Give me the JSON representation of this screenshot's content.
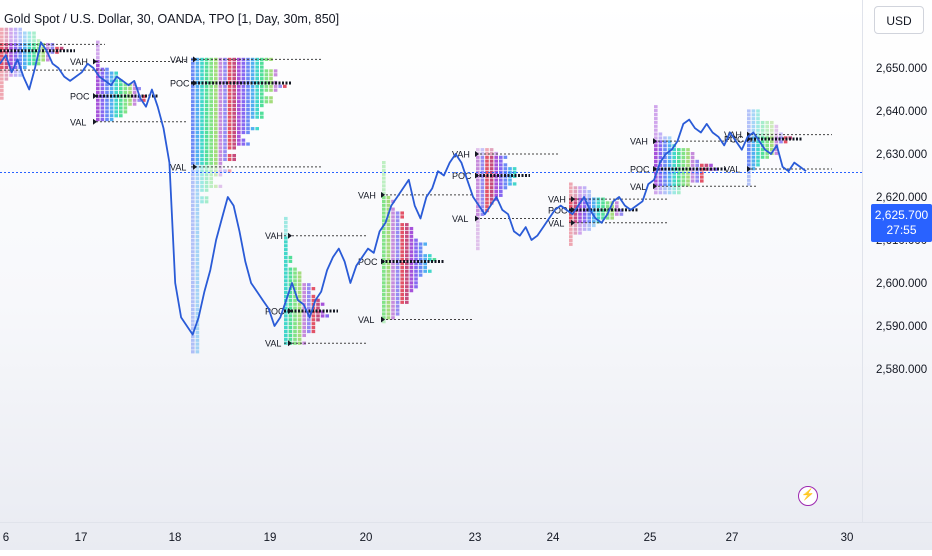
{
  "chart_title": "Gold Spot / U.S. Dollar, 30, OANDA, TPO [1, Day, 30m, 850]",
  "currency": "USD",
  "last_price": "2,625.700",
  "countdown": "27:55",
  "price_axis_labels": [
    "2,650.000",
    "2,640.000",
    "2,630.000",
    "2,620.000",
    "2,610.000",
    "2,600.000",
    "2,590.000",
    "2,580.000"
  ],
  "time_axis_labels": [
    "6",
    "17",
    "18",
    "19",
    "20",
    "23",
    "24",
    "25",
    "27",
    "30"
  ],
  "colors": {
    "line": "#2a5bd7",
    "accent": "#2962ff",
    "replay": "#9c27b0"
  },
  "chart_data": {
    "type": "line",
    "symbol": "XAUUSD",
    "y_ticks": [
      2650,
      2640,
      2630,
      2620,
      2610,
      2600,
      2590,
      2580
    ],
    "ylim": [
      2576,
      2659
    ],
    "last_price": 2625.7,
    "x_tick_labels": [
      "6",
      "17",
      "18",
      "19",
      "20",
      "23",
      "24",
      "25",
      "27",
      "30"
    ],
    "series": [
      {
        "values": [
          2651,
          2653,
          2649,
          2652,
          2648,
          2645,
          2650,
          2656,
          2654,
          2651,
          2650,
          2648,
          2647,
          2648,
          2649,
          2651,
          2650,
          2648,
          2647,
          2646,
          2648,
          2647,
          2646,
          2647,
          2643,
          2641,
          2645,
          2641,
          2636,
          2628,
          2600,
          2592,
          2590,
          2588,
          2592,
          2598,
          2603,
          2610,
          2615,
          2620,
          2618,
          2612,
          2605,
          2600,
          2598,
          2596,
          2594,
          2590,
          2592,
          2596,
          2600,
          2596,
          2595,
          2592,
          2596,
          2598,
          2603,
          2606,
          2608,
          2605,
          2600,
          2604,
          2606,
          2608,
          2607,
          2612,
          2614,
          2618,
          2620,
          2622,
          2624,
          2618,
          2615,
          2620,
          2622,
          2626,
          2625,
          2628,
          2630,
          2628,
          2624,
          2620,
          2618,
          2616,
          2618,
          2620,
          2617,
          2616,
          2612,
          2611,
          2613,
          2610,
          2611,
          2613,
          2615,
          2617,
          2618,
          2617,
          2616,
          2618,
          2620,
          2617,
          2615,
          2614,
          2616,
          2619,
          2620,
          2618,
          2617,
          2618,
          2619,
          2623,
          2624,
          2628,
          2630,
          2631,
          2633,
          2637,
          2638,
          2636,
          2635,
          2637,
          2635,
          2634,
          2632,
          2635,
          2633,
          2631,
          2634,
          2635,
          2633,
          2631,
          2630,
          2632,
          2627,
          2626,
          2628,
          2627,
          2626
        ],
        "color": "#2a5bd7"
      }
    ],
    "tpo_profiles": [
      {
        "day": "prior",
        "top": 2659,
        "bottom": 2643,
        "vah": 2655.5,
        "poc": 2654,
        "val": 2649.5
      },
      {
        "day": "17",
        "top": 2656,
        "bottom": 2638,
        "vah": 2651.5,
        "poc": 2643.5,
        "val": 2637.5
      },
      {
        "day": "18",
        "top": 2652,
        "bottom": 2584,
        "vah": 2652,
        "poc": 2646.5,
        "val": 2627
      },
      {
        "day": "19",
        "top": 2615,
        "bottom": 2586,
        "vah": 2611,
        "poc": 2593.5,
        "val": 2586
      },
      {
        "day": "20",
        "top": 2628,
        "bottom": 2591,
        "vah": 2620.5,
        "poc": 2605,
        "val": 2591.5
      },
      {
        "day": "23",
        "top": 2631,
        "bottom": 2608,
        "vah": 2630,
        "poc": 2625,
        "val": 2615
      },
      {
        "day": "24",
        "top": 2623,
        "bottom": 2609,
        "vah": 2619.5,
        "poc": 2617,
        "val": 2614
      },
      {
        "day": "25",
        "top": 2641,
        "bottom": 2621,
        "vah": 2633,
        "poc": 2626.5,
        "val": 2622.5
      },
      {
        "day": "27",
        "top": 2640,
        "bottom": 2623,
        "vah": 2634.5,
        "poc": 2633.5,
        "val": 2626.5
      }
    ],
    "profile_labels": [
      "VAH",
      "POC",
      "VAL"
    ],
    "grid": false
  }
}
